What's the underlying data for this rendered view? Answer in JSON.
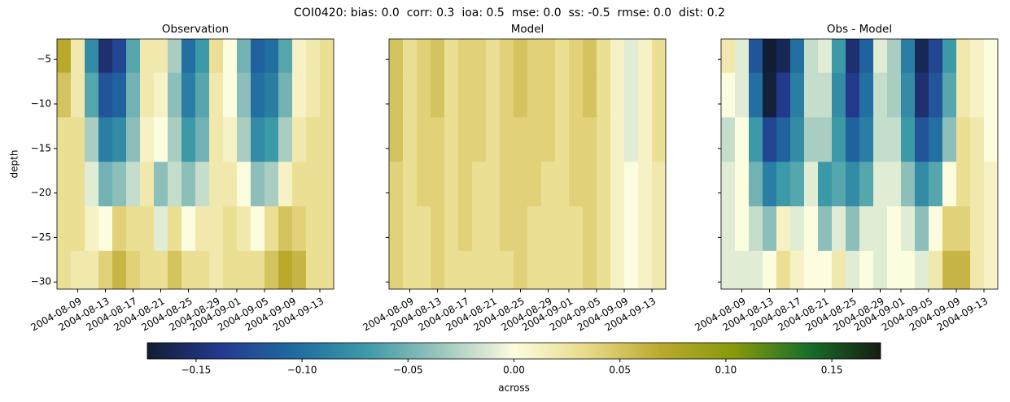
{
  "title": "COI0420: bias: 0.0  corr: 0.3  ioa: 0.5  mse: 0.0  ss: -0.5  rmse: 0.0  dist: 0.2",
  "chart_data": [
    {
      "type": "heatmap",
      "title": "Observation",
      "ylabel": "depth",
      "x": [
        "2004-08-07",
        "2004-08-09",
        "2004-08-11",
        "2004-08-13",
        "2004-08-15",
        "2004-08-17",
        "2004-08-19",
        "2004-08-21",
        "2004-08-23",
        "2004-08-25",
        "2004-08-27",
        "2004-08-29",
        "2004-08-31",
        "2004-09-02",
        "2004-09-04",
        "2004-09-06",
        "2004-09-08",
        "2004-09-10",
        "2004-09-12",
        "2004-09-14"
      ],
      "y": [
        -4,
        -9,
        -14,
        -19,
        -24,
        -29
      ],
      "z": [
        [
          0.07,
          0.02,
          -0.08,
          -0.15,
          -0.13,
          -0.06,
          0.02,
          0.02,
          -0.03,
          -0.1,
          -0.07,
          0.03,
          0.0,
          -0.05,
          -0.11,
          -0.1,
          -0.06,
          0.01,
          0.02,
          0.03
        ],
        [
          0.05,
          0.02,
          -0.06,
          -0.12,
          -0.11,
          -0.05,
          0.02,
          0.01,
          -0.04,
          -0.09,
          -0.06,
          0.02,
          0.0,
          -0.04,
          -0.1,
          -0.09,
          -0.05,
          0.01,
          0.02,
          0.03
        ],
        [
          0.03,
          0.03,
          -0.03,
          -0.09,
          -0.08,
          -0.04,
          0.01,
          0.0,
          -0.03,
          -0.07,
          -0.05,
          0.02,
          0.01,
          -0.03,
          -0.08,
          -0.07,
          -0.03,
          0.02,
          0.03,
          0.03
        ],
        [
          0.03,
          0.03,
          -0.01,
          -0.05,
          -0.04,
          -0.02,
          0.02,
          -0.04,
          -0.02,
          -0.04,
          -0.02,
          0.02,
          0.02,
          0.0,
          -0.04,
          -0.03,
          0.01,
          0.03,
          0.03,
          0.03
        ],
        [
          0.03,
          0.03,
          0.01,
          0.0,
          0.04,
          0.03,
          0.03,
          -0.01,
          0.03,
          0.0,
          0.02,
          0.02,
          0.03,
          0.02,
          0.0,
          0.03,
          0.05,
          0.04,
          0.03,
          0.03
        ],
        [
          0.03,
          0.02,
          0.02,
          0.04,
          0.06,
          0.04,
          0.03,
          0.03,
          0.05,
          0.03,
          0.03,
          0.02,
          0.03,
          0.03,
          0.03,
          0.05,
          0.07,
          0.06,
          0.03,
          0.03
        ]
      ],
      "xlim": [
        "2004-08-06",
        "2004-09-15"
      ],
      "ylim": [
        -30.8,
        -2.7
      ],
      "xticks": [
        "2004-08-09",
        "2004-08-13",
        "2004-08-17",
        "2004-08-21",
        "2004-08-25",
        "2004-08-29",
        "2004-09-01",
        "2004-09-05",
        "2004-09-09",
        "2004-09-13"
      ],
      "yticks": [
        {
          "value": -5,
          "label": "−5"
        },
        {
          "value": -10,
          "label": "−10"
        },
        {
          "value": -15,
          "label": "−15"
        },
        {
          "value": -20,
          "label": "−20"
        },
        {
          "value": -25,
          "label": "−25"
        },
        {
          "value": -30,
          "label": "−30"
        }
      ]
    },
    {
      "type": "heatmap",
      "title": "Model",
      "x": [
        "2004-08-07",
        "2004-08-09",
        "2004-08-11",
        "2004-08-13",
        "2004-08-15",
        "2004-08-17",
        "2004-08-19",
        "2004-08-21",
        "2004-08-23",
        "2004-08-25",
        "2004-08-27",
        "2004-08-29",
        "2004-08-31",
        "2004-09-02",
        "2004-09-04",
        "2004-09-06",
        "2004-09-08",
        "2004-09-10",
        "2004-09-12",
        "2004-09-14"
      ],
      "y": [
        -4,
        -9,
        -14,
        -19,
        -24,
        -29
      ],
      "z": [
        [
          0.05,
          0.03,
          0.04,
          0.05,
          0.03,
          0.04,
          0.04,
          0.03,
          0.04,
          0.05,
          0.04,
          0.04,
          0.03,
          0.04,
          0.05,
          0.03,
          0.01,
          -0.01,
          0.01,
          0.03
        ],
        [
          0.05,
          0.03,
          0.04,
          0.05,
          0.03,
          0.04,
          0.04,
          0.03,
          0.04,
          0.05,
          0.04,
          0.04,
          0.03,
          0.04,
          0.05,
          0.03,
          0.01,
          -0.01,
          0.01,
          0.03
        ],
        [
          0.05,
          0.03,
          0.04,
          0.04,
          0.03,
          0.04,
          0.04,
          0.03,
          0.04,
          0.04,
          0.04,
          0.04,
          0.03,
          0.04,
          0.04,
          0.03,
          0.01,
          -0.01,
          0.01,
          0.03
        ],
        [
          0.04,
          0.03,
          0.04,
          0.04,
          0.03,
          0.04,
          0.03,
          0.03,
          0.04,
          0.04,
          0.04,
          0.03,
          0.03,
          0.04,
          0.04,
          0.03,
          0.01,
          0.0,
          0.01,
          0.02
        ],
        [
          0.04,
          0.03,
          0.03,
          0.04,
          0.03,
          0.04,
          0.03,
          0.03,
          0.04,
          0.04,
          0.03,
          0.03,
          0.03,
          0.03,
          0.04,
          0.03,
          0.01,
          0.0,
          0.01,
          0.02
        ],
        [
          0.04,
          0.03,
          0.03,
          0.04,
          0.03,
          0.03,
          0.03,
          0.03,
          0.03,
          0.04,
          0.03,
          0.03,
          0.03,
          0.03,
          0.04,
          0.03,
          0.01,
          0.0,
          0.01,
          0.02
        ]
      ],
      "xlim": [
        "2004-08-06",
        "2004-09-15"
      ],
      "ylim": [
        -30.8,
        -2.7
      ],
      "xticks": [
        "2004-08-09",
        "2004-08-13",
        "2004-08-17",
        "2004-08-21",
        "2004-08-25",
        "2004-08-29",
        "2004-09-01",
        "2004-09-05",
        "2004-09-09",
        "2004-09-13"
      ],
      "yticks": [
        -5,
        -10,
        -15,
        -20,
        -25,
        -30
      ]
    },
    {
      "type": "heatmap",
      "title": "Obs - Model",
      "x": [
        "2004-08-07",
        "2004-08-09",
        "2004-08-11",
        "2004-08-13",
        "2004-08-15",
        "2004-08-17",
        "2004-08-19",
        "2004-08-21",
        "2004-08-23",
        "2004-08-25",
        "2004-08-27",
        "2004-08-29",
        "2004-08-31",
        "2004-09-02",
        "2004-09-04",
        "2004-09-06",
        "2004-09-08",
        "2004-09-10",
        "2004-09-12",
        "2004-09-14"
      ],
      "y": [
        -4,
        -9,
        -14,
        -19,
        -24,
        -29
      ],
      "z": [
        [
          0.02,
          -0.01,
          -0.12,
          -0.2,
          -0.16,
          -0.1,
          -0.02,
          -0.01,
          -0.07,
          -0.15,
          -0.11,
          -0.01,
          -0.03,
          -0.09,
          -0.16,
          -0.13,
          -0.07,
          0.02,
          0.01,
          0.0
        ],
        [
          0.0,
          -0.01,
          -0.1,
          -0.17,
          -0.14,
          -0.09,
          -0.02,
          -0.02,
          -0.08,
          -0.14,
          -0.1,
          -0.02,
          -0.03,
          -0.08,
          -0.15,
          -0.12,
          -0.06,
          0.02,
          0.01,
          0.0
        ],
        [
          -0.02,
          0.0,
          -0.07,
          -0.13,
          -0.11,
          -0.08,
          -0.03,
          -0.03,
          -0.07,
          -0.11,
          -0.09,
          -0.02,
          -0.02,
          -0.07,
          -0.12,
          -0.1,
          -0.04,
          0.03,
          0.02,
          0.0
        ],
        [
          -0.01,
          0.0,
          -0.05,
          -0.09,
          -0.07,
          -0.06,
          -0.01,
          -0.07,
          -0.06,
          -0.08,
          -0.06,
          -0.01,
          -0.01,
          -0.04,
          -0.08,
          -0.06,
          0.0,
          0.03,
          0.02,
          0.01
        ],
        [
          -0.01,
          0.0,
          -0.02,
          -0.04,
          0.01,
          -0.01,
          0.0,
          -0.04,
          -0.01,
          -0.04,
          -0.01,
          -0.01,
          0.0,
          -0.01,
          -0.04,
          0.0,
          0.04,
          0.04,
          0.02,
          0.01
        ],
        [
          -0.01,
          -0.01,
          -0.01,
          0.0,
          0.03,
          0.01,
          0.0,
          0.0,
          0.02,
          -0.01,
          0.0,
          -0.01,
          0.0,
          0.0,
          -0.01,
          0.02,
          0.06,
          0.06,
          0.02,
          0.01
        ]
      ],
      "xlim": [
        "2004-08-06",
        "2004-09-15"
      ],
      "ylim": [
        -30.8,
        -2.7
      ],
      "xticks": [
        "2004-08-09",
        "2004-08-13",
        "2004-08-17",
        "2004-08-21",
        "2004-08-25",
        "2004-08-29",
        "2004-09-01",
        "2004-09-05",
        "2004-09-09",
        "2004-09-13"
      ],
      "yticks": [
        -5,
        -10,
        -15,
        -20,
        -25,
        -30
      ]
    },
    {
      "type": "colorbar",
      "label": "across",
      "clim": [
        -0.173,
        0.173
      ],
      "colormap": [
        "#111d34",
        "#243a8f",
        "#1f6ba0",
        "#3d9aa8",
        "#9cc6bd",
        "#fcfcde",
        "#e8da88",
        "#bba92e",
        "#869a0b",
        "#197028",
        "#161c12"
      ],
      "ticks": [
        {
          "value": -0.15,
          "label": "−0.15"
        },
        {
          "value": -0.1,
          "label": "−0.10"
        },
        {
          "value": -0.05,
          "label": "−0.05"
        },
        {
          "value": 0,
          "label": "0.00"
        },
        {
          "value": 0.05,
          "label": "0.05"
        },
        {
          "value": 0.1,
          "label": "0.10"
        },
        {
          "value": 0.15,
          "label": "0.15"
        }
      ]
    }
  ]
}
